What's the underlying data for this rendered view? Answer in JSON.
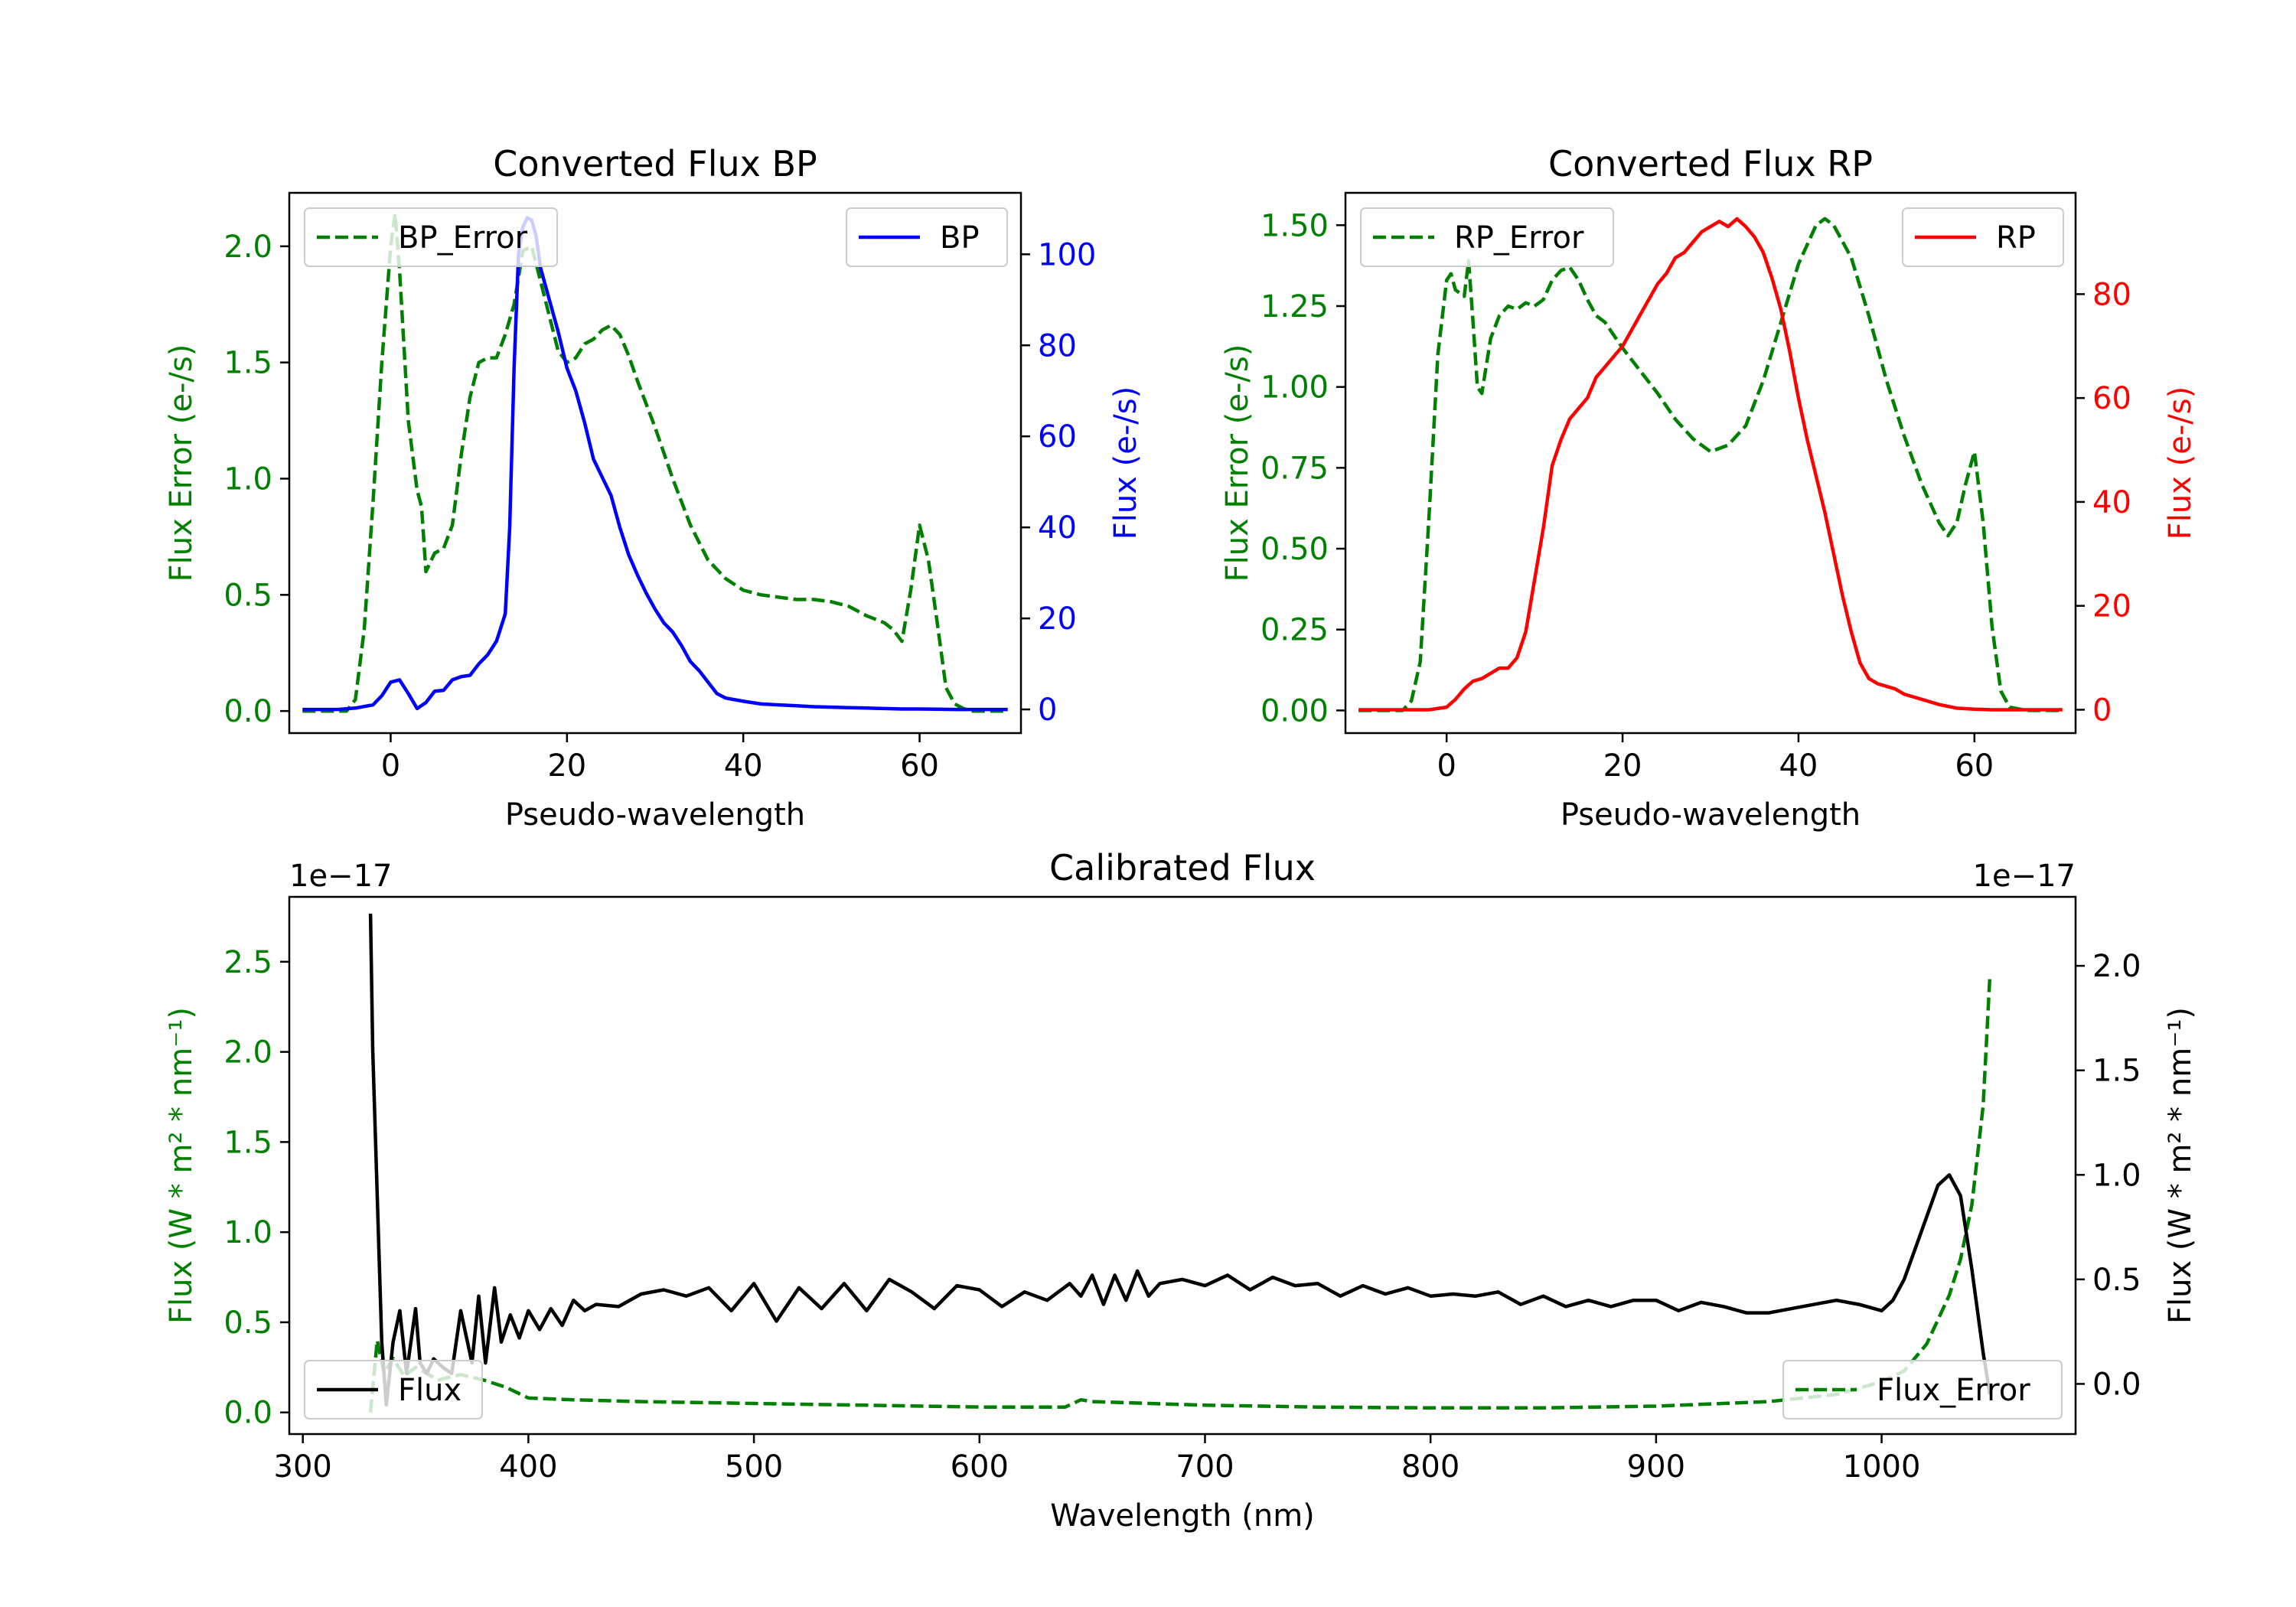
{
  "chart_data": [
    {
      "type": "line",
      "title": "Converted Flux BP",
      "xlabel": "Pseudo-wavelength",
      "ylabel_left": "Flux Error (e-/s)",
      "ylabel_right": "Flux (e-/s)",
      "xlim": [
        -11.5,
        71.5
      ],
      "ylim_left": [
        -0.095,
        2.23
      ],
      "ylim_right": [
        -5.2,
        113.5
      ],
      "xticks": [
        0,
        20,
        40,
        60
      ],
      "yticks_left": [
        0.0,
        0.5,
        1.0,
        1.5,
        2.0
      ],
      "yticks_right": [
        0,
        20,
        40,
        60,
        80,
        100
      ],
      "colors": {
        "left_axis": "#008000",
        "right_axis": "#0000ff"
      },
      "series": [
        {
          "name": "BP_Error",
          "axis": "left",
          "style": "dashed",
          "color": "#008000",
          "x": [
            -10,
            -5,
            -4,
            -3,
            -2,
            -1,
            0,
            0.5,
            1,
            2,
            3,
            3.5,
            4,
            5,
            6,
            7,
            8,
            9,
            10,
            11,
            12,
            13,
            14,
            15,
            16,
            17,
            18,
            19,
            20,
            21,
            22,
            23,
            24,
            25,
            26,
            27,
            28,
            30,
            32,
            34,
            36,
            38,
            40,
            42,
            44,
            46,
            48,
            50,
            52,
            54,
            56,
            57,
            58,
            59,
            60,
            61,
            62,
            63,
            64,
            65,
            66,
            68,
            70
          ],
          "y": [
            0.0,
            0.0,
            0.05,
            0.35,
            0.9,
            1.5,
            2.0,
            2.14,
            1.9,
            1.25,
            0.95,
            0.88,
            0.6,
            0.68,
            0.7,
            0.8,
            1.1,
            1.35,
            1.5,
            1.52,
            1.52,
            1.62,
            1.75,
            1.98,
            2.0,
            1.85,
            1.7,
            1.55,
            1.5,
            1.52,
            1.58,
            1.6,
            1.64,
            1.66,
            1.62,
            1.53,
            1.42,
            1.22,
            1.0,
            0.8,
            0.65,
            0.57,
            0.52,
            0.5,
            0.49,
            0.48,
            0.48,
            0.47,
            0.45,
            0.41,
            0.38,
            0.35,
            0.3,
            0.52,
            0.8,
            0.65,
            0.38,
            0.1,
            0.03,
            0.01,
            0.0,
            0.0,
            0.0
          ]
        },
        {
          "name": "BP",
          "axis": "right",
          "style": "solid",
          "color": "#0000ff",
          "x": [
            -10,
            -6,
            -4,
            -2,
            -1,
            0,
            1,
            2,
            3,
            4,
            5,
            6,
            7,
            8,
            9,
            10,
            11,
            12,
            13,
            13.5,
            14,
            14.5,
            15,
            15.5,
            16,
            16.5,
            17,
            18,
            19,
            20,
            21,
            22,
            23,
            24,
            25,
            26,
            27,
            28,
            29,
            30,
            31,
            32,
            33,
            34,
            35,
            36,
            37,
            38,
            40,
            42,
            44,
            46,
            48,
            50,
            52,
            54,
            56,
            58,
            60,
            62,
            64,
            66,
            68,
            70
          ],
          "y": [
            0,
            0,
            0.3,
            1.0,
            3.0,
            6.0,
            6.5,
            3.5,
            0.2,
            1.5,
            4.0,
            4.2,
            6.5,
            7.2,
            7.5,
            10.0,
            12.0,
            15.0,
            21.0,
            40.0,
            75.0,
            100.0,
            106.0,
            108.0,
            107.5,
            104.0,
            97.0,
            90.0,
            83.0,
            75.0,
            70.0,
            63.0,
            55.0,
            51.0,
            47.0,
            40.0,
            34.0,
            29.5,
            25.5,
            22.0,
            19.0,
            17.0,
            14.0,
            10.5,
            8.5,
            6.0,
            3.5,
            2.5,
            1.8,
            1.2,
            1.0,
            0.8,
            0.6,
            0.5,
            0.4,
            0.3,
            0.2,
            0.1,
            0.1,
            0.05,
            0.0,
            0.0,
            0.0,
            0.0
          ]
        }
      ],
      "legend": [
        {
          "label": "BP_Error",
          "location": "upper left"
        },
        {
          "label": "BP",
          "location": "upper right"
        }
      ]
    },
    {
      "type": "line",
      "title": "Converted Flux RP",
      "xlabel": "Pseudo-wavelength",
      "ylabel_left": "Flux Error (e-/s)",
      "ylabel_right": "Flux (e-/s)",
      "xlim": [
        -11.5,
        71.5
      ],
      "ylim_left": [
        -0.07,
        1.6
      ],
      "ylim_right": [
        -4.5,
        99.5
      ],
      "xticks": [
        0,
        20,
        40,
        60
      ],
      "yticks_left": [
        0.0,
        0.25,
        0.5,
        0.75,
        1.0,
        1.25,
        1.5
      ],
      "yticks_right": [
        0,
        20,
        40,
        60,
        80
      ],
      "colors": {
        "left_axis": "#008000",
        "right_axis": "#ff0000"
      },
      "series": [
        {
          "name": "RP_Error",
          "axis": "left",
          "style": "dashed",
          "color": "#008000",
          "x": [
            -10,
            -5,
            -4,
            -3,
            -2,
            -1,
            0,
            0.5,
            1,
            2,
            2.5,
            3,
            3.5,
            4,
            5,
            6,
            7,
            8,
            9,
            10,
            11,
            12,
            13,
            14,
            15,
            16,
            17,
            18,
            20,
            22,
            24,
            26,
            28,
            30,
            32,
            34,
            36,
            38,
            40,
            42,
            43,
            44,
            46,
            48,
            50,
            52,
            54,
            56,
            57,
            58,
            59,
            60,
            61,
            62,
            63,
            64,
            66,
            68,
            70
          ],
          "y": [
            0.0,
            0.0,
            0.03,
            0.15,
            0.6,
            1.1,
            1.33,
            1.35,
            1.3,
            1.28,
            1.39,
            1.2,
            1.0,
            0.98,
            1.15,
            1.22,
            1.25,
            1.24,
            1.26,
            1.25,
            1.27,
            1.33,
            1.36,
            1.37,
            1.33,
            1.27,
            1.22,
            1.2,
            1.12,
            1.05,
            0.98,
            0.9,
            0.84,
            0.8,
            0.82,
            0.88,
            1.02,
            1.2,
            1.38,
            1.5,
            1.52,
            1.5,
            1.4,
            1.22,
            1.02,
            0.85,
            0.7,
            0.58,
            0.54,
            0.58,
            0.7,
            0.8,
            0.58,
            0.26,
            0.06,
            0.01,
            0.0,
            0.0,
            0.0
          ]
        },
        {
          "name": "RP",
          "axis": "right",
          "style": "solid",
          "color": "#ff0000",
          "x": [
            -10,
            -6,
            -2,
            0,
            1,
            2,
            3,
            4,
            5,
            6,
            7,
            8,
            9,
            10,
            11,
            12,
            13,
            14,
            15,
            16,
            17,
            18,
            19,
            20,
            21,
            22,
            23,
            24,
            25,
            26,
            27,
            28,
            29,
            30,
            31,
            32,
            33,
            34,
            35,
            36,
            37,
            38,
            39,
            40,
            41,
            42,
            43,
            44,
            45,
            46,
            47,
            48,
            49,
            50,
            51,
            52,
            54,
            56,
            58,
            60,
            62,
            64,
            66,
            68,
            70
          ],
          "y": [
            0,
            0,
            0,
            0.5,
            2.0,
            4.0,
            5.5,
            6.0,
            7.0,
            8.0,
            8.0,
            10.0,
            15.0,
            25.0,
            35.0,
            47.0,
            52.0,
            56.0,
            58.0,
            60.0,
            64.0,
            66.0,
            68.0,
            70.0,
            73.0,
            76.0,
            79.0,
            82.0,
            84.0,
            87.0,
            88.0,
            90.0,
            92.0,
            93.0,
            94.0,
            93.0,
            94.5,
            93.0,
            91.0,
            88.0,
            83.0,
            77.0,
            69.0,
            60.0,
            52.0,
            45.0,
            38.0,
            30.0,
            22.0,
            15.0,
            9.0,
            6.0,
            5.0,
            4.5,
            4.0,
            3.0,
            2.0,
            1.0,
            0.3,
            0.1,
            0.0,
            0.0,
            0.0,
            0.0,
            0.0
          ]
        }
      ],
      "legend": [
        {
          "label": "RP_Error",
          "location": "upper left"
        },
        {
          "label": "RP",
          "location": "upper right"
        }
      ]
    },
    {
      "type": "line",
      "title": "Calibrated Flux",
      "xlabel": "Wavelength (nm)",
      "ylabel_left": "Flux (W * m² * nm⁻¹)",
      "ylabel_right": "Flux (W * m² * nm⁻¹)",
      "offset_left": "1e−17",
      "offset_right": "1e−17",
      "xlim": [
        294,
        1086
      ],
      "ylim_left": [
        -0.12,
        2.86
      ],
      "ylim_right": [
        -0.24,
        2.33
      ],
      "xticks": [
        300,
        400,
        500,
        600,
        700,
        800,
        900,
        1000
      ],
      "yticks_left": [
        0.0,
        0.5,
        1.0,
        1.5,
        2.0,
        2.5
      ],
      "yticks_left_labels": [
        "0.0",
        "0.5",
        "1.0",
        "1.5",
        "2.0",
        "2.5"
      ],
      "yticks_right": [
        0.0,
        0.5,
        1.0,
        1.5,
        2.0
      ],
      "yticks_right_labels": [
        "0.0",
        "0.5",
        "1.0",
        "1.5",
        "2.0"
      ],
      "colors": {
        "left_axis": "#008000",
        "right_axis": "#000000"
      },
      "series": [
        {
          "name": "Flux_Error",
          "axis": "left",
          "style": "dashed",
          "color": "#008000",
          "x": [
            330,
            333,
            336,
            340,
            345,
            350,
            360,
            370,
            380,
            390,
            400,
            420,
            450,
            500,
            550,
            600,
            638,
            645,
            650,
            700,
            750,
            800,
            850,
            900,
            950,
            980,
            1000,
            1010,
            1020,
            1030,
            1035,
            1040,
            1045,
            1048
          ],
          "y": [
            0.0,
            0.4,
            0.22,
            0.3,
            0.2,
            0.25,
            0.18,
            0.21,
            0.18,
            0.14,
            0.08,
            0.07,
            0.06,
            0.05,
            0.04,
            0.03,
            0.03,
            0.07,
            0.06,
            0.04,
            0.03,
            0.025,
            0.025,
            0.035,
            0.06,
            0.1,
            0.17,
            0.23,
            0.38,
            0.65,
            0.85,
            1.15,
            1.7,
            2.42
          ]
        },
        {
          "name": "Flux",
          "axis": "right",
          "style": "solid",
          "color": "#000000",
          "x": [
            330,
            331,
            333,
            335,
            337,
            338,
            340,
            343,
            346,
            350,
            352,
            355,
            358,
            362,
            366,
            370,
            375,
            378,
            381,
            385,
            388,
            392,
            396,
            400,
            405,
            410,
            415,
            420,
            425,
            430,
            440,
            450,
            460,
            470,
            480,
            490,
            500,
            510,
            520,
            530,
            540,
            550,
            560,
            570,
            580,
            590,
            600,
            610,
            620,
            630,
            640,
            645,
            650,
            655,
            660,
            665,
            670,
            675,
            680,
            690,
            700,
            710,
            720,
            730,
            740,
            750,
            760,
            770,
            780,
            790,
            800,
            810,
            820,
            830,
            840,
            850,
            860,
            870,
            880,
            890,
            900,
            910,
            920,
            930,
            940,
            950,
            960,
            970,
            980,
            990,
            1000,
            1005,
            1010,
            1015,
            1020,
            1025,
            1030,
            1035,
            1040,
            1045,
            1048
          ],
          "y": [
            2.25,
            1.6,
            0.9,
            0.2,
            -0.1,
            0.0,
            0.2,
            0.35,
            0.05,
            0.36,
            0.1,
            0.05,
            0.12,
            0.08,
            0.05,
            0.35,
            0.1,
            0.42,
            0.1,
            0.46,
            0.2,
            0.33,
            0.22,
            0.35,
            0.26,
            0.36,
            0.28,
            0.4,
            0.35,
            0.38,
            0.37,
            0.43,
            0.45,
            0.42,
            0.46,
            0.35,
            0.48,
            0.3,
            0.46,
            0.36,
            0.48,
            0.35,
            0.5,
            0.44,
            0.36,
            0.47,
            0.45,
            0.37,
            0.44,
            0.4,
            0.48,
            0.42,
            0.52,
            0.38,
            0.52,
            0.4,
            0.54,
            0.42,
            0.48,
            0.5,
            0.47,
            0.52,
            0.45,
            0.51,
            0.47,
            0.48,
            0.42,
            0.47,
            0.43,
            0.46,
            0.42,
            0.43,
            0.42,
            0.44,
            0.38,
            0.42,
            0.37,
            0.4,
            0.37,
            0.4,
            0.4,
            0.35,
            0.39,
            0.37,
            0.34,
            0.34,
            0.36,
            0.38,
            0.4,
            0.38,
            0.35,
            0.4,
            0.5,
            0.65,
            0.8,
            0.95,
            1.0,
            0.9,
            0.55,
            0.15,
            -0.05
          ]
        }
      ],
      "legend": [
        {
          "label": "Flux",
          "location": "lower left"
        },
        {
          "label": "Flux_Error",
          "location": "lower right"
        }
      ]
    }
  ]
}
